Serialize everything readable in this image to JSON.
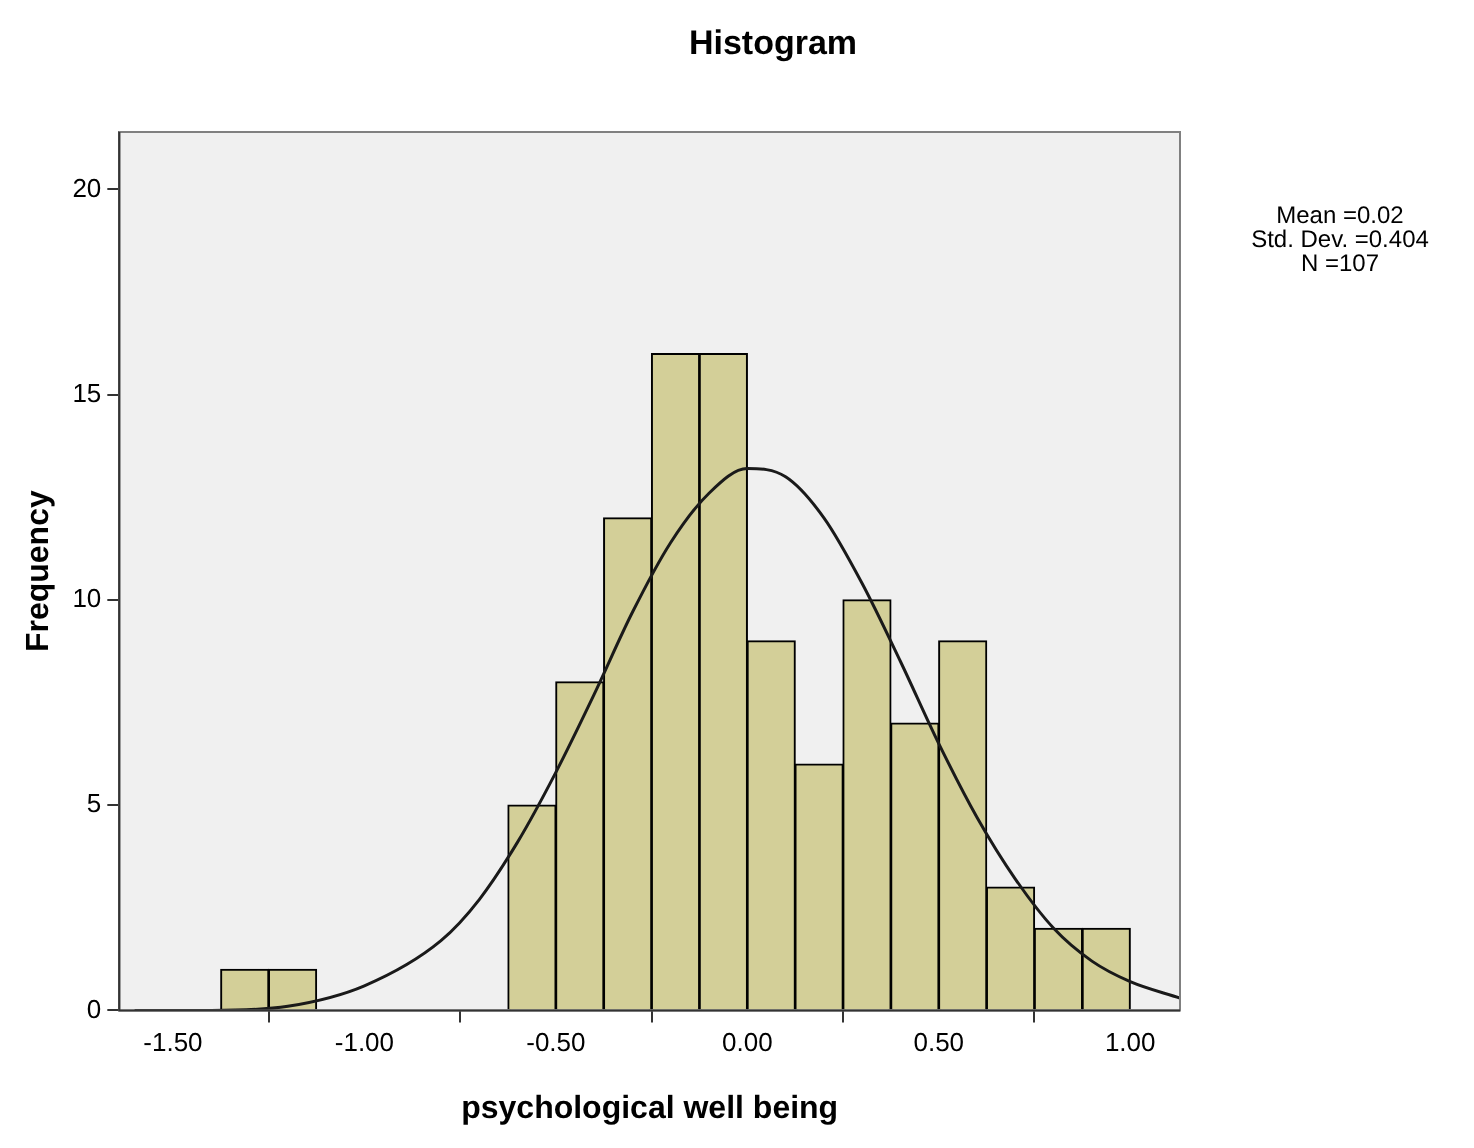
{
  "chart_data": {
    "type": "histogram",
    "title": "Histogram",
    "xlabel": "psychological well being",
    "ylabel": "Frequency",
    "bins": [
      -1.375,
      -1.25,
      -1.125,
      -1.0,
      -0.875,
      -0.75,
      -0.625,
      -0.5,
      -0.375,
      -0.25,
      -0.125,
      0,
      0.125,
      0.25,
      0.375,
      0.5,
      0.625,
      0.75,
      0.875,
      1.0
    ],
    "values": [
      1,
      1,
      0,
      0,
      0,
      0,
      5,
      8,
      12,
      16,
      16,
      9,
      6,
      10,
      7,
      9,
      3,
      2,
      2
    ],
    "color": "#d3cf98",
    "series": [
      {
        "type": "line",
        "color": "#1a1a1a",
        "x": [
          -1.6,
          -1.4,
          -1.2,
          -1.0,
          -0.8,
          -0.7,
          -0.6,
          -0.5,
          -0.4,
          -0.3,
          -0.2,
          -0.1,
          0,
          0.1,
          0.2,
          0.3,
          0.4,
          0.5,
          0.6,
          0.7,
          0.8,
          0.9,
          1.0,
          1.13
        ],
        "values": [
          0,
          0,
          0.1,
          0.6,
          1.7,
          2.7,
          4.1,
          5.8,
          7.7,
          9.7,
          11.4,
          12.6,
          13.2,
          13,
          12,
          10.4,
          8.5,
          6.5,
          4.7,
          3.2,
          2,
          1.2,
          0.7,
          0.3
        ]
      }
    ],
    "marker": "none",
    "xlim": [
      -1.64,
      1.13
    ],
    "ylim": [
      0,
      21.4
    ],
    "xticks": [
      {
        "value": -1.5,
        "label": "-1.50"
      },
      {
        "value": -1,
        "label": "-1.00"
      },
      {
        "value": -0.5,
        "label": "-0.50"
      },
      {
        "value": 0,
        "label": "0.00"
      },
      {
        "value": 0.5,
        "label": "0.50"
      },
      {
        "value": 1,
        "label": "1.00"
      }
    ],
    "yticks": [
      0,
      5,
      10,
      15,
      20
    ],
    "annotations": [
      "Mean =0.02\nStd. Dev. =0.404\nN =107"
    ]
  }
}
